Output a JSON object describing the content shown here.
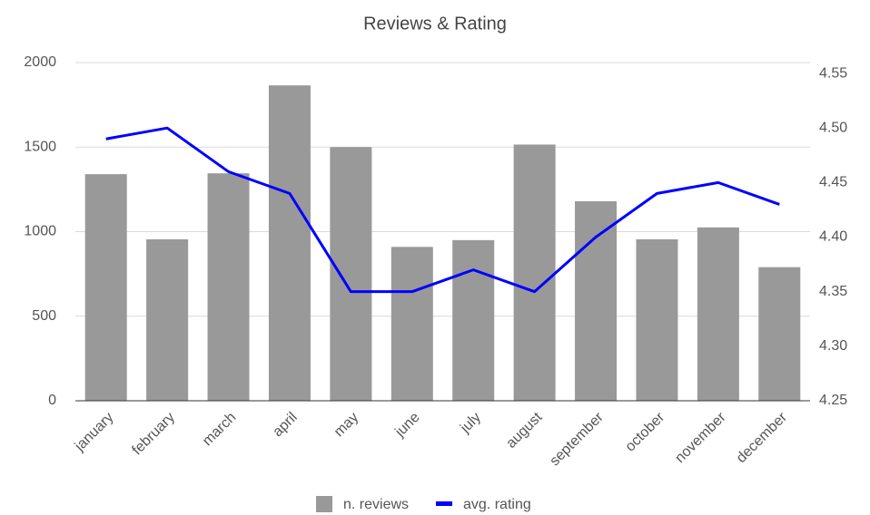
{
  "chart_data": {
    "type": "bar_line",
    "title": "Reviews & Rating",
    "categories": [
      "january",
      "february",
      "march",
      "april",
      "may",
      "june",
      "july",
      "august",
      "september",
      "october",
      "november",
      "december"
    ],
    "series": [
      {
        "name": "n. reviews",
        "type": "bar",
        "color": "#999999",
        "values": [
          1340,
          955,
          1345,
          1865,
          1500,
          910,
          950,
          1515,
          1180,
          955,
          1025,
          790
        ]
      },
      {
        "name": "avg. rating",
        "type": "line",
        "axis": "y2",
        "color": "#0000ff",
        "values": [
          4.49,
          4.5,
          4.46,
          4.44,
          4.35,
          4.35,
          4.37,
          4.35,
          4.4,
          4.44,
          4.45,
          4.43
        ]
      }
    ],
    "ylim": [
      0,
      2000
    ],
    "yticks": [
      0,
      500,
      1000,
      1500,
      2000
    ],
    "y2lim": [
      4.25,
      4.56
    ],
    "y2ticks": [
      4.25,
      {
        "value": 4.3,
        "label": "4.30"
      },
      4.35,
      {
        "value": 4.4,
        "label": "4.40"
      },
      4.45,
      {
        "value": 4.5,
        "label": "4.50"
      },
      4.55
    ],
    "grid": true,
    "legend": "bottom"
  }
}
